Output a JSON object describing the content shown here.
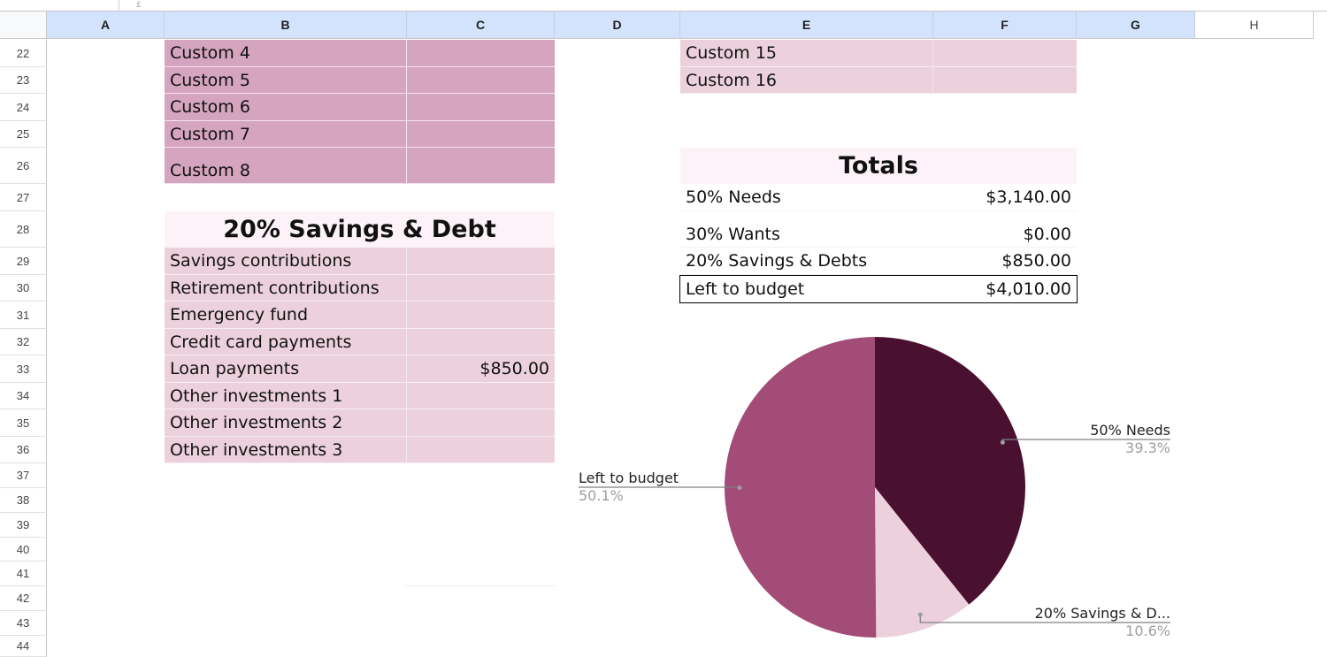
{
  "spreadsheet": {
    "toolbar_hint": "£",
    "columns": [
      "A",
      "B",
      "C",
      "D",
      "E",
      "F",
      "G",
      "H"
    ],
    "rows": [
      "22",
      "23",
      "24",
      "25",
      "26",
      "27",
      "28",
      "29",
      "30",
      "31",
      "32",
      "33",
      "34",
      "35",
      "36",
      "37",
      "38",
      "39",
      "40",
      "41",
      "42",
      "43",
      "44"
    ]
  },
  "wants_section": {
    "items": [
      {
        "label": "Custom 4",
        "value": ""
      },
      {
        "label": "Custom 5",
        "value": ""
      },
      {
        "label": "Custom 6",
        "value": ""
      },
      {
        "label": "Custom 7",
        "value": ""
      },
      {
        "label": "Custom 8",
        "value": ""
      }
    ]
  },
  "savings_section": {
    "title": "20% Savings & Debt",
    "items": [
      {
        "label": "Savings contributions",
        "value": ""
      },
      {
        "label": "Retirement contributions",
        "value": ""
      },
      {
        "label": "Emergency fund",
        "value": ""
      },
      {
        "label": "Credit card payments",
        "value": ""
      },
      {
        "label": "Loan payments",
        "value": "$850.00"
      },
      {
        "label": "Other investments 1",
        "value": ""
      },
      {
        "label": "Other investments 2",
        "value": ""
      },
      {
        "label": "Other investments 3",
        "value": ""
      }
    ]
  },
  "custom_right": {
    "items": [
      {
        "label": "Custom 15",
        "value": ""
      },
      {
        "label": "Custom 16",
        "value": ""
      }
    ]
  },
  "totals": {
    "title": "Totals",
    "rows": [
      {
        "label": "50% Needs",
        "value": "$3,140.00"
      },
      {
        "label": "30% Wants",
        "value": "$0.00"
      },
      {
        "label": "20% Savings & Debts",
        "value": "$850.00"
      },
      {
        "label": "Left to budget",
        "value": "$4,010.00"
      }
    ]
  },
  "chart_data": {
    "type": "pie",
    "slices": [
      {
        "label": "50% Needs",
        "percent_label": "39.3%",
        "value": 3140,
        "color": "#4a1030"
      },
      {
        "label": "20% Savings & D...",
        "percent_label": "10.6%",
        "value": 850,
        "color": "#ecd1dd"
      },
      {
        "label": "Left to budget",
        "percent_label": "50.1%",
        "value": 4010,
        "color": "#a34c77"
      }
    ],
    "label_color": "#222222",
    "percent_color": "#9e9e9e",
    "leader_color": "#808080"
  }
}
